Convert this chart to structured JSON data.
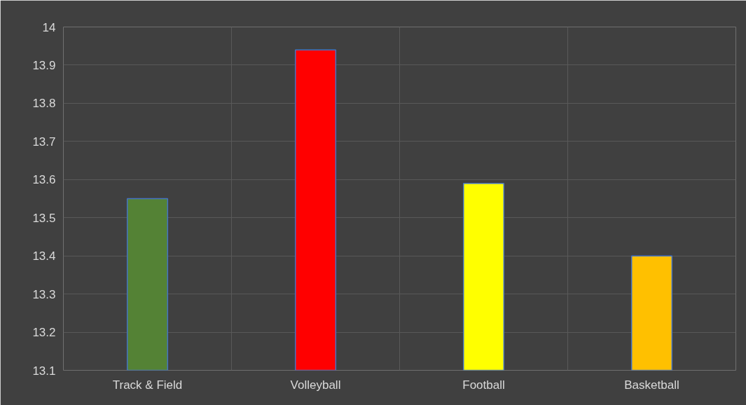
{
  "chart_data": {
    "type": "bar",
    "categories": [
      "Track & Field",
      "Volleyball",
      "Football",
      "Basketball"
    ],
    "values": [
      13.55,
      13.94,
      13.59,
      13.4
    ],
    "colors": [
      "#548235",
      "#ff0000",
      "#ffff00",
      "#ffc000"
    ],
    "ylim": [
      13.1,
      14
    ],
    "yticks": [
      13.1,
      13.2,
      13.3,
      13.4,
      13.5,
      13.6,
      13.7,
      13.8,
      13.9,
      14
    ],
    "grid": true
  }
}
